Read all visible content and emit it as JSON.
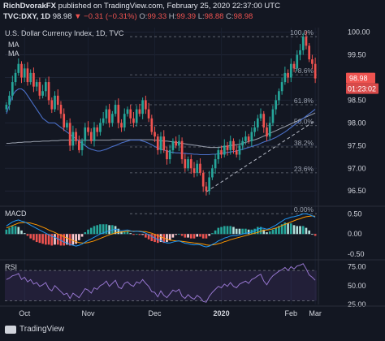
{
  "header": {
    "line1": "RichDvorakFX published on TradingView.com, February 25, 2020 22:37:00 UTC",
    "author": "RichDvorakFX",
    "symbol": "TVC:DXY, 1D",
    "last": "98.98",
    "change": "▼ −0.31 (−0.31%)",
    "o_label": "O:",
    "o": "99.33",
    "h_label": "H:",
    "h": "99.39",
    "l_label": "L:",
    "l": "98.88",
    "c_label": "C:",
    "c": "98.98"
  },
  "colors": {
    "background": "#131722",
    "up": "#26a69a",
    "down": "#ef5350",
    "ma_blue": "#4a6fc7",
    "ma_grey": "#9aa0ad",
    "macd": "#2196f3",
    "signal": "#ff9800",
    "rsi": "#9575cd",
    "price_label": "#ef5350",
    "countdown_label": "#d84a4a"
  },
  "footer": {
    "brand": "TradingView",
    "logo_icon": "tradingview-logo-icon"
  },
  "chart_data": [
    {
      "type": "candlestick",
      "title": "U.S. Dollar Currency Index, 1D, TVC",
      "legend": [
        "MA",
        "MA"
      ],
      "ylim": [
        96.2,
        100.1
      ],
      "y_ticks": [
        "100.00",
        "99.50",
        "99.00",
        "98.50",
        "98.00",
        "97.50",
        "97.00",
        "96.50"
      ],
      "last_price_label": "98.98",
      "countdown_label": "01:23:02",
      "x_tick_labels": [
        "Oct",
        "Nov",
        "Dec",
        "2020",
        "Feb",
        "Mar"
      ],
      "fib_levels": [
        {
          "label": "100.0%",
          "value": 99.9
        },
        {
          "label": "78.6%",
          "value": 99.06
        },
        {
          "label": "61.8%",
          "value": 98.4
        },
        {
          "label": "50.0%",
          "value": 97.94
        },
        {
          "label": "38.2%",
          "value": 97.47
        },
        {
          "label": "23.6%",
          "value": 96.9
        },
        {
          "label": "0.00%",
          "value": 96.0
        }
      ],
      "closes": [
        98.4,
        98.6,
        98.9,
        99.1,
        99.3,
        99.0,
        99.2,
        98.9,
        99.1,
        98.8,
        98.9,
        98.6,
        98.7,
        98.9,
        98.5,
        98.3,
        98.6,
        98.4,
        98.2,
        97.9,
        98.0,
        97.5,
        97.8,
        97.6,
        97.4,
        97.6,
        97.9,
        97.8,
        97.6,
        97.9,
        97.8,
        98.0,
        98.1,
        98.3,
        98.0,
        98.2,
        98.4,
        98.0,
        97.9,
        98.2,
        98.3,
        98.1,
        98.0,
        98.3,
        98.2,
        98.5,
        98.3,
        98.1,
        97.8,
        97.7,
        97.4,
        97.7,
        97.4,
        97.2,
        97.4,
        97.6,
        97.5,
        97.6,
        97.2,
        97.0,
        97.2,
        97.0,
        96.9,
        97.1,
        96.9,
        96.6,
        96.5,
        96.8,
        97.0,
        97.2,
        97.4,
        97.3,
        97.5,
        97.4,
        97.6,
        97.4,
        97.3,
        97.5,
        97.6,
        97.7,
        97.6,
        97.8,
        97.9,
        98.1,
        98.2,
        97.9,
        97.7,
        98.0,
        98.3,
        98.5,
        98.7,
        98.9,
        99.1,
        99.0,
        99.3,
        99.2,
        99.5,
        99.6,
        99.9,
        99.7,
        99.4,
        99.3,
        98.98
      ],
      "ma_blue": [
        98.2,
        98.4,
        98.6,
        98.7,
        98.75,
        98.75,
        98.7,
        98.6,
        98.5,
        98.4,
        98.3,
        98.2,
        98.1,
        98.05,
        98.0,
        98.0,
        98.0,
        97.95,
        97.9,
        97.85,
        97.8,
        97.75,
        97.7,
        97.65,
        97.6,
        97.55,
        97.5,
        97.45,
        97.42,
        97.4,
        97.38,
        97.38,
        97.4,
        97.42,
        97.45,
        97.48,
        97.5,
        97.53,
        97.56,
        97.58,
        97.6,
        97.62,
        97.62,
        97.62,
        97.62,
        97.6,
        97.58,
        97.55,
        97.52,
        97.48,
        97.45,
        97.42,
        97.4,
        97.38,
        97.36,
        97.35,
        97.34,
        97.34,
        97.33,
        97.33,
        97.32,
        97.32,
        97.31,
        97.31,
        97.3,
        97.3,
        97.3,
        97.3,
        97.31,
        97.31,
        97.32,
        97.33,
        97.34,
        97.35,
        97.36,
        97.37,
        97.38,
        97.4,
        97.42,
        97.44,
        97.46,
        97.48,
        97.5,
        97.52,
        97.55,
        97.58,
        97.6,
        97.62,
        97.65,
        97.68,
        97.72,
        97.76,
        97.8,
        97.85,
        97.9,
        97.95,
        98.0,
        98.05,
        98.1,
        98.15,
        98.2,
        98.25,
        98.3
      ],
      "ma_grey": [
        97.55,
        97.55,
        97.56,
        97.56,
        97.57,
        97.57,
        97.58,
        97.58,
        97.58,
        97.59,
        97.59,
        97.59,
        97.6,
        97.6,
        97.6,
        97.61,
        97.61,
        97.61,
        97.62,
        97.62,
        97.62,
        97.62,
        97.62,
        97.62,
        97.62,
        97.62,
        97.62,
        97.62,
        97.62,
        97.62,
        97.62,
        97.62,
        97.62,
        97.62,
        97.62,
        97.63,
        97.63,
        97.63,
        97.63,
        97.63,
        97.63,
        97.63,
        97.63,
        97.63,
        97.63,
        97.63,
        97.63,
        97.63,
        97.63,
        97.62,
        97.62,
        97.61,
        97.6,
        97.6,
        97.59,
        97.58,
        97.57,
        97.56,
        97.55,
        97.54,
        97.53,
        97.52,
        97.51,
        97.5,
        97.49,
        97.48,
        97.47,
        97.46,
        97.46,
        97.46,
        97.46,
        97.47,
        97.48,
        97.49,
        97.5,
        97.51,
        97.52,
        97.53,
        97.55,
        97.57,
        97.59,
        97.61,
        97.63,
        97.65,
        97.68,
        97.71,
        97.74,
        97.77,
        97.8,
        97.83,
        97.86,
        97.89,
        97.92,
        97.95,
        97.98,
        98.01,
        98.04,
        98.07,
        98.1,
        98.13,
        98.16,
        98.19,
        98.22
      ]
    },
    {
      "type": "macd",
      "label": "MACD",
      "ylim": [
        -0.6,
        0.65
      ],
      "y_ticks": [
        "0.50",
        "0.00",
        "-0.50"
      ],
      "macd": [
        0.2,
        0.25,
        0.3,
        0.33,
        0.35,
        0.32,
        0.3,
        0.26,
        0.22,
        0.18,
        0.14,
        0.1,
        0.06,
        0.02,
        -0.02,
        -0.06,
        -0.08,
        -0.12,
        -0.16,
        -0.2,
        -0.22,
        -0.26,
        -0.28,
        -0.3,
        -0.28,
        -0.25,
        -0.2,
        -0.16,
        -0.12,
        -0.08,
        -0.04,
        0.0,
        0.03,
        0.06,
        0.08,
        0.1,
        0.12,
        0.1,
        0.08,
        0.09,
        0.1,
        0.08,
        0.06,
        0.07,
        0.06,
        0.05,
        0.02,
        -0.02,
        -0.06,
        -0.1,
        -0.14,
        -0.16,
        -0.2,
        -0.22,
        -0.22,
        -0.2,
        -0.18,
        -0.17,
        -0.2,
        -0.23,
        -0.24,
        -0.26,
        -0.27,
        -0.26,
        -0.27,
        -0.3,
        -0.32,
        -0.3,
        -0.26,
        -0.22,
        -0.17,
        -0.14,
        -0.1,
        -0.08,
        -0.05,
        -0.04,
        -0.04,
        -0.02,
        0.0,
        0.02,
        0.03,
        0.05,
        0.08,
        0.12,
        0.15,
        0.14,
        0.12,
        0.14,
        0.18,
        0.22,
        0.27,
        0.32,
        0.37,
        0.39,
        0.42,
        0.43,
        0.45,
        0.47,
        0.5,
        0.5,
        0.48,
        0.45,
        0.42
      ],
      "signal": [
        0.15,
        0.18,
        0.21,
        0.24,
        0.27,
        0.28,
        0.29,
        0.28,
        0.27,
        0.25,
        0.23,
        0.2,
        0.17,
        0.14,
        0.1,
        0.07,
        0.04,
        0.0,
        -0.03,
        -0.07,
        -0.1,
        -0.13,
        -0.16,
        -0.19,
        -0.21,
        -0.22,
        -0.22,
        -0.21,
        -0.19,
        -0.17,
        -0.14,
        -0.11,
        -0.08,
        -0.05,
        -0.02,
        0.0,
        0.03,
        0.04,
        0.05,
        0.06,
        0.07,
        0.07,
        0.07,
        0.07,
        0.07,
        0.06,
        0.06,
        0.04,
        0.02,
        -0.01,
        -0.04,
        -0.07,
        -0.1,
        -0.13,
        -0.15,
        -0.16,
        -0.17,
        -0.17,
        -0.18,
        -0.19,
        -0.2,
        -0.21,
        -0.22,
        -0.23,
        -0.24,
        -0.25,
        -0.27,
        -0.28,
        -0.27,
        -0.26,
        -0.24,
        -0.22,
        -0.19,
        -0.17,
        -0.14,
        -0.12,
        -0.1,
        -0.08,
        -0.06,
        -0.04,
        -0.02,
        0.0,
        0.02,
        0.04,
        0.07,
        0.09,
        0.1,
        0.11,
        0.13,
        0.15,
        0.18,
        0.21,
        0.24,
        0.27,
        0.3,
        0.33,
        0.36,
        0.38,
        0.41,
        0.43,
        0.44,
        0.45,
        0.44
      ]
    },
    {
      "type": "rsi",
      "label": "RSI",
      "ylim": [
        25,
        82
      ],
      "y_ticks": [
        "75.00",
        "50.00",
        "25.00"
      ],
      "band": [
        30,
        70
      ],
      "values": [
        58,
        60,
        63,
        64,
        66,
        58,
        61,
        55,
        58,
        52,
        54,
        49,
        51,
        54,
        46,
        43,
        50,
        46,
        42,
        38,
        40,
        33,
        40,
        37,
        34,
        40,
        46,
        44,
        40,
        47,
        45,
        50,
        52,
        56,
        49,
        53,
        57,
        48,
        46,
        53,
        55,
        51,
        49,
        55,
        53,
        58,
        53,
        49,
        42,
        41,
        35,
        43,
        37,
        34,
        39,
        44,
        42,
        45,
        36,
        33,
        38,
        34,
        32,
        37,
        34,
        29,
        28,
        36,
        41,
        45,
        49,
        47,
        52,
        49,
        54,
        49,
        47,
        52,
        54,
        56,
        53,
        58,
        60,
        63,
        65,
        56,
        51,
        58,
        63,
        66,
        69,
        71,
        74,
        70,
        75,
        72,
        76,
        77,
        79,
        72,
        64,
        61,
        57
      ]
    }
  ]
}
